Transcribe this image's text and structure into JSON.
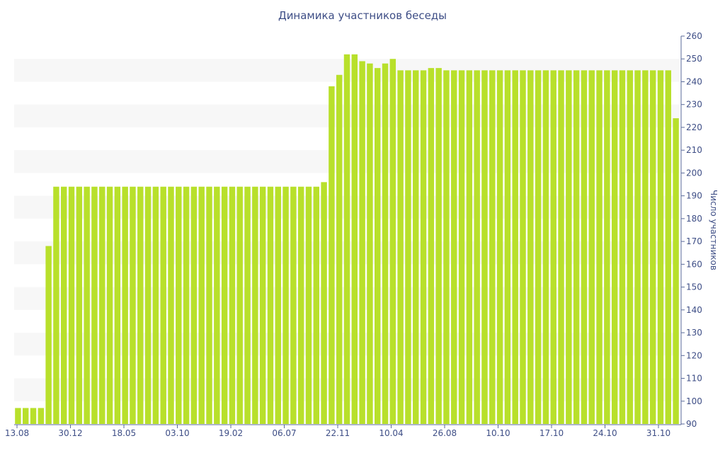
{
  "chart_data": {
    "type": "bar",
    "title": "Динамика участников беседы",
    "xlabel": "",
    "ylabel": "Число участников",
    "ylim": [
      90,
      260
    ],
    "y_ticks": [
      90,
      100,
      110,
      120,
      130,
      140,
      150,
      160,
      170,
      180,
      190,
      200,
      210,
      220,
      230,
      240,
      250,
      260
    ],
    "y_axis_side": "right",
    "x_tick_labels": [
      "13.08",
      "30.12",
      "18.05",
      "03.10",
      "19.02",
      "06.07",
      "22.11",
      "10.04",
      "26.08",
      "10.10",
      "17.10",
      "24.10",
      "31.10"
    ],
    "grid": "alternating horizontal bands",
    "bar_color": "#b8e02b",
    "band_color": "#f7f7f7",
    "text_color": "#3e4e86",
    "axis_color": "#5a6a9a",
    "values": [
      97,
      97,
      97,
      97,
      168,
      194,
      194,
      194,
      194,
      194,
      194,
      194,
      194,
      194,
      194,
      194,
      194,
      194,
      194,
      194,
      194,
      194,
      194,
      194,
      194,
      194,
      194,
      194,
      194,
      194,
      194,
      194,
      194,
      194,
      194,
      194,
      194,
      194,
      194,
      194,
      196,
      238,
      243,
      252,
      252,
      249,
      248,
      246,
      248,
      250,
      245,
      245,
      245,
      245,
      246,
      246,
      245,
      245,
      245,
      245,
      245,
      245,
      245,
      245,
      245,
      245,
      245,
      245,
      245,
      245,
      245,
      245,
      245,
      245,
      245,
      245,
      245,
      245,
      245,
      245,
      245,
      245,
      245,
      245,
      245,
      245,
      224
    ]
  }
}
